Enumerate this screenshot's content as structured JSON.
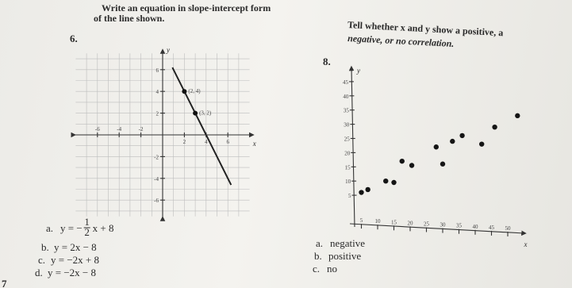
{
  "problem6": {
    "number": "6.",
    "instruction_line1": "Write an equation in slope-intercept form",
    "instruction_line2": "of the line shown.",
    "x_label": "x",
    "y_label": "y",
    "xticks": [
      -6,
      -4,
      -2,
      2,
      4,
      6
    ],
    "yticks": [
      6,
      4,
      2,
      -2,
      -4,
      -6
    ],
    "points": [
      {
        "x": 2,
        "y": 4,
        "label": "(2, 4)"
      },
      {
        "x": 3,
        "y": 2,
        "label": "(3, 2)"
      }
    ],
    "options": [
      {
        "label": "a.",
        "before": "y = −",
        "numerator": "1",
        "denominator": "2",
        "after": "x + 8"
      },
      {
        "label": "b.",
        "text": "y = 2x − 8"
      },
      {
        "label": "c.",
        "text": "y = −2x + 8"
      },
      {
        "label": "d.",
        "text": "y = −2x − 8"
      }
    ]
  },
  "problem8": {
    "number": "8.",
    "instruction_line1": "Tell whether x and y show a positive, a",
    "instruction_line2": "negative, or no correlation.",
    "x_label": "x",
    "y_label": "y",
    "xticks": [
      5,
      10,
      15,
      20,
      25,
      30,
      35,
      40,
      45,
      50
    ],
    "yticks": [
      5,
      10,
      15,
      20,
      25,
      30,
      35,
      40,
      45
    ],
    "points": [
      {
        "x": 5,
        "y": 6
      },
      {
        "x": 7,
        "y": 7
      },
      {
        "x": 12.5,
        "y": 10
      },
      {
        "x": 15,
        "y": 9.5
      },
      {
        "x": 17.5,
        "y": 17
      },
      {
        "x": 20.5,
        "y": 15.5
      },
      {
        "x": 30,
        "y": 16
      },
      {
        "x": 28,
        "y": 22
      },
      {
        "x": 33,
        "y": 24
      },
      {
        "x": 36,
        "y": 26
      },
      {
        "x": 42,
        "y": 23
      },
      {
        "x": 46,
        "y": 29
      },
      {
        "x": 53,
        "y": 33
      }
    ],
    "options": [
      {
        "label": "a.",
        "text": "negative"
      },
      {
        "label": "b.",
        "text": "positive"
      },
      {
        "label": "c.",
        "text": "no"
      }
    ]
  },
  "next_number": "7"
}
